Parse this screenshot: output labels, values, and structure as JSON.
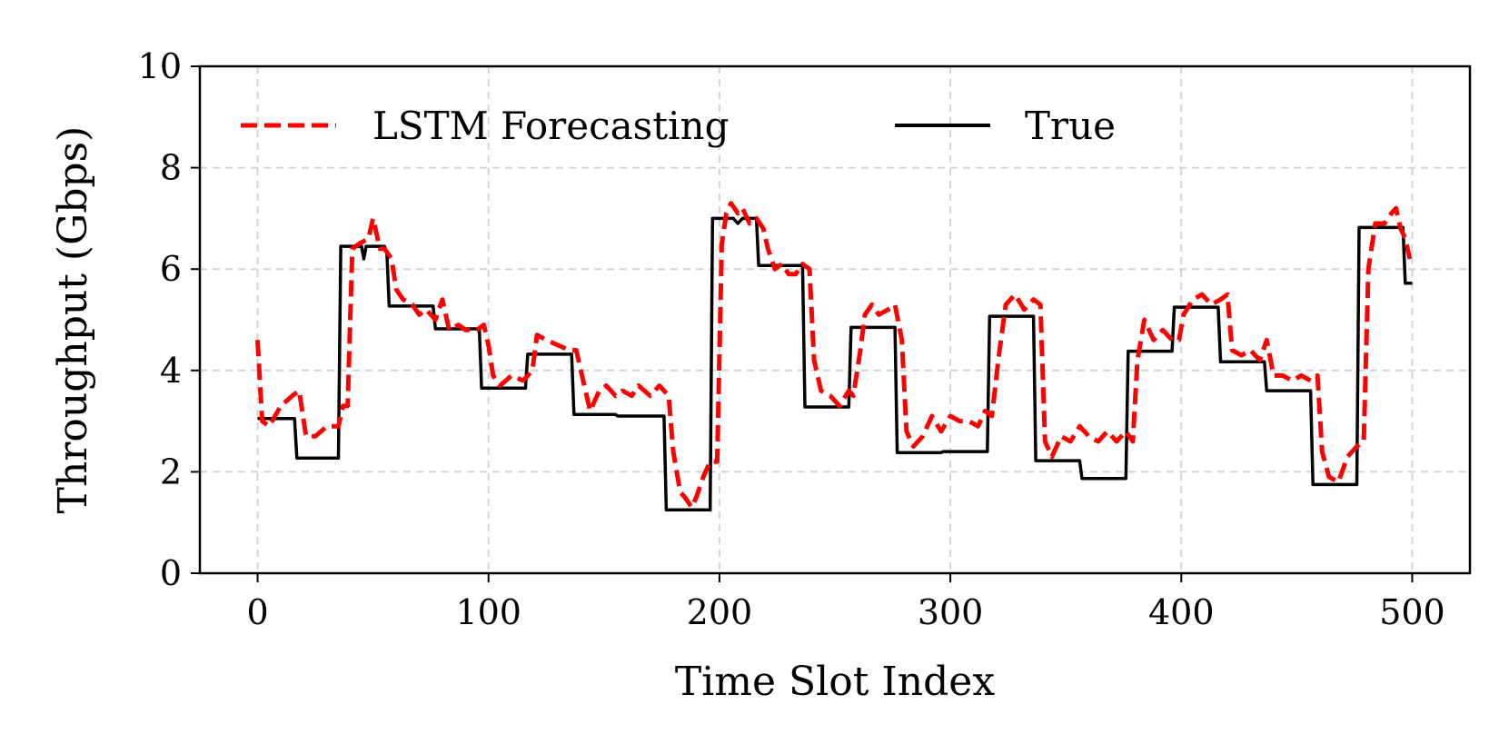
{
  "chart_data": {
    "type": "line",
    "title": "",
    "xlabel": "Time Slot Index",
    "ylabel": "Throughput (Gbps)",
    "xlim": [
      -25,
      525
    ],
    "ylim": [
      0,
      10
    ],
    "xticks": [
      0,
      100,
      200,
      300,
      400,
      500
    ],
    "yticks": [
      0,
      2,
      4,
      6,
      8,
      10
    ],
    "grid": true,
    "legend_position": "top-left",
    "series": [
      {
        "name": "LSTM Forecasting",
        "color": "#ff0000",
        "style": "dashed",
        "points": [
          [
            0,
            4.6
          ],
          [
            2,
            3.0
          ],
          [
            5,
            2.9
          ],
          [
            10,
            3.3
          ],
          [
            15,
            3.5
          ],
          [
            18,
            3.6
          ],
          [
            21,
            2.7
          ],
          [
            25,
            2.7
          ],
          [
            30,
            2.9
          ],
          [
            35,
            2.9
          ],
          [
            37,
            3.3
          ],
          [
            39,
            3.3
          ],
          [
            41,
            6.4
          ],
          [
            44,
            6.5
          ],
          [
            48,
            6.6
          ],
          [
            50,
            7.0
          ],
          [
            53,
            6.4
          ],
          [
            55,
            6.4
          ],
          [
            58,
            6.2
          ],
          [
            60,
            5.6
          ],
          [
            63,
            5.4
          ],
          [
            67,
            5.3
          ],
          [
            70,
            5.1
          ],
          [
            73,
            5.2
          ],
          [
            77,
            5.0
          ],
          [
            80,
            5.4
          ],
          [
            83,
            4.8
          ],
          [
            87,
            4.9
          ],
          [
            90,
            4.8
          ],
          [
            95,
            4.8
          ],
          [
            98,
            4.9
          ],
          [
            100,
            4.5
          ],
          [
            102,
            3.9
          ],
          [
            105,
            3.7
          ],
          [
            110,
            3.9
          ],
          [
            115,
            3.8
          ],
          [
            119,
            4.0
          ],
          [
            121,
            4.7
          ],
          [
            125,
            4.6
          ],
          [
            130,
            4.5
          ],
          [
            135,
            4.4
          ],
          [
            138,
            4.4
          ],
          [
            141,
            3.8
          ],
          [
            144,
            3.2
          ],
          [
            148,
            3.6
          ],
          [
            151,
            3.7
          ],
          [
            155,
            3.5
          ],
          [
            158,
            3.6
          ],
          [
            162,
            3.5
          ],
          [
            165,
            3.7
          ],
          [
            170,
            3.5
          ],
          [
            174,
            3.7
          ],
          [
            178,
            3.5
          ],
          [
            180,
            2.4
          ],
          [
            183,
            1.6
          ],
          [
            185,
            1.5
          ],
          [
            188,
            1.3
          ],
          [
            190,
            1.5
          ],
          [
            193,
            1.9
          ],
          [
            196,
            2.2
          ],
          [
            199,
            2.2
          ],
          [
            201,
            6.5
          ],
          [
            203,
            7.1
          ],
          [
            205,
            7.3
          ],
          [
            208,
            7.1
          ],
          [
            210,
            7.2
          ],
          [
            213,
            6.9
          ],
          [
            216,
            7.0
          ],
          [
            219,
            6.8
          ],
          [
            221,
            6.4
          ],
          [
            224,
            6.0
          ],
          [
            227,
            6.1
          ],
          [
            230,
            5.9
          ],
          [
            233,
            5.9
          ],
          [
            236,
            6.1
          ],
          [
            239,
            6.0
          ],
          [
            241,
            4.2
          ],
          [
            244,
            3.6
          ],
          [
            248,
            3.5
          ],
          [
            252,
            3.3
          ],
          [
            256,
            3.6
          ],
          [
            258,
            3.5
          ],
          [
            261,
            4.4
          ],
          [
            263,
            5.1
          ],
          [
            266,
            5.3
          ],
          [
            269,
            5.1
          ],
          [
            273,
            5.2
          ],
          [
            276,
            5.3
          ],
          [
            279,
            4.6
          ],
          [
            281,
            2.8
          ],
          [
            284,
            2.5
          ],
          [
            288,
            2.7
          ],
          [
            292,
            3.1
          ],
          [
            296,
            2.8
          ],
          [
            300,
            3.1
          ],
          [
            304,
            3.0
          ],
          [
            308,
            3.0
          ],
          [
            312,
            2.9
          ],
          [
            315,
            3.2
          ],
          [
            318,
            3.1
          ],
          [
            321,
            4.3
          ],
          [
            324,
            5.3
          ],
          [
            328,
            5.5
          ],
          [
            332,
            5.2
          ],
          [
            336,
            5.4
          ],
          [
            339,
            5.3
          ],
          [
            341,
            2.6
          ],
          [
            344,
            2.3
          ],
          [
            348,
            2.7
          ],
          [
            352,
            2.6
          ],
          [
            356,
            2.9
          ],
          [
            360,
            2.7
          ],
          [
            364,
            2.6
          ],
          [
            368,
            2.8
          ],
          [
            372,
            2.6
          ],
          [
            376,
            2.8
          ],
          [
            379,
            2.6
          ],
          [
            381,
            4.2
          ],
          [
            384,
            5.0
          ],
          [
            388,
            4.6
          ],
          [
            392,
            4.8
          ],
          [
            396,
            4.6
          ],
          [
            399,
            4.6
          ],
          [
            401,
            5.1
          ],
          [
            405,
            5.4
          ],
          [
            409,
            5.5
          ],
          [
            413,
            5.3
          ],
          [
            417,
            5.4
          ],
          [
            420,
            5.5
          ],
          [
            422,
            4.4
          ],
          [
            426,
            4.3
          ],
          [
            430,
            4.4
          ],
          [
            434,
            4.2
          ],
          [
            437,
            4.6
          ],
          [
            440,
            3.9
          ],
          [
            444,
            3.9
          ],
          [
            448,
            3.8
          ],
          [
            452,
            3.9
          ],
          [
            456,
            3.8
          ],
          [
            459,
            3.9
          ],
          [
            461,
            2.4
          ],
          [
            464,
            1.9
          ],
          [
            468,
            1.8
          ],
          [
            472,
            2.3
          ],
          [
            476,
            2.5
          ],
          [
            479,
            2.6
          ],
          [
            481,
            6.0
          ],
          [
            484,
            6.9
          ],
          [
            488,
            6.9
          ],
          [
            491,
            7.1
          ],
          [
            493,
            7.2
          ],
          [
            495,
            6.8
          ],
          [
            497,
            6.6
          ],
          [
            499,
            6.2
          ]
        ]
      },
      {
        "name": "True",
        "color": "#000000",
        "style": "solid",
        "points": [
          [
            0,
            3.05
          ],
          [
            16,
            3.05
          ],
          [
            17,
            2.27
          ],
          [
            35,
            2.27
          ],
          [
            36,
            6.45
          ],
          [
            42,
            6.45
          ],
          [
            45,
            6.45
          ],
          [
            46,
            6.2
          ],
          [
            47,
            6.45
          ],
          [
            55,
            6.45
          ],
          [
            56,
            6.3
          ],
          [
            57,
            5.27
          ],
          [
            76,
            5.27
          ],
          [
            77,
            4.82
          ],
          [
            96,
            4.82
          ],
          [
            97,
            3.65
          ],
          [
            116,
            3.65
          ],
          [
            117,
            4.32
          ],
          [
            136,
            4.32
          ],
          [
            137,
            3.13
          ],
          [
            155,
            3.13
          ],
          [
            156,
            3.1
          ],
          [
            176,
            3.1
          ],
          [
            177,
            1.25
          ],
          [
            196,
            1.25
          ],
          [
            197,
            7.0
          ],
          [
            206,
            7.0
          ],
          [
            208,
            6.9
          ],
          [
            210,
            7.0
          ],
          [
            216,
            7.0
          ],
          [
            217,
            6.07
          ],
          [
            236,
            6.07
          ],
          [
            237,
            3.28
          ],
          [
            256,
            3.28
          ],
          [
            257,
            4.85
          ],
          [
            276,
            4.85
          ],
          [
            277,
            2.38
          ],
          [
            296,
            2.38
          ],
          [
            297,
            2.4
          ],
          [
            316,
            2.4
          ],
          [
            317,
            5.07
          ],
          [
            336,
            5.07
          ],
          [
            337,
            2.22
          ],
          [
            356,
            2.22
          ],
          [
            357,
            1.87
          ],
          [
            376,
            1.87
          ],
          [
            377,
            4.38
          ],
          [
            396,
            4.38
          ],
          [
            397,
            5.25
          ],
          [
            416,
            5.25
          ],
          [
            417,
            4.17
          ],
          [
            436,
            4.17
          ],
          [
            437,
            3.6
          ],
          [
            456,
            3.6
          ],
          [
            457,
            1.75
          ],
          [
            476,
            1.75
          ],
          [
            477,
            6.82
          ],
          [
            496,
            6.82
          ],
          [
            497,
            5.72
          ],
          [
            500,
            5.72
          ]
        ]
      }
    ]
  }
}
